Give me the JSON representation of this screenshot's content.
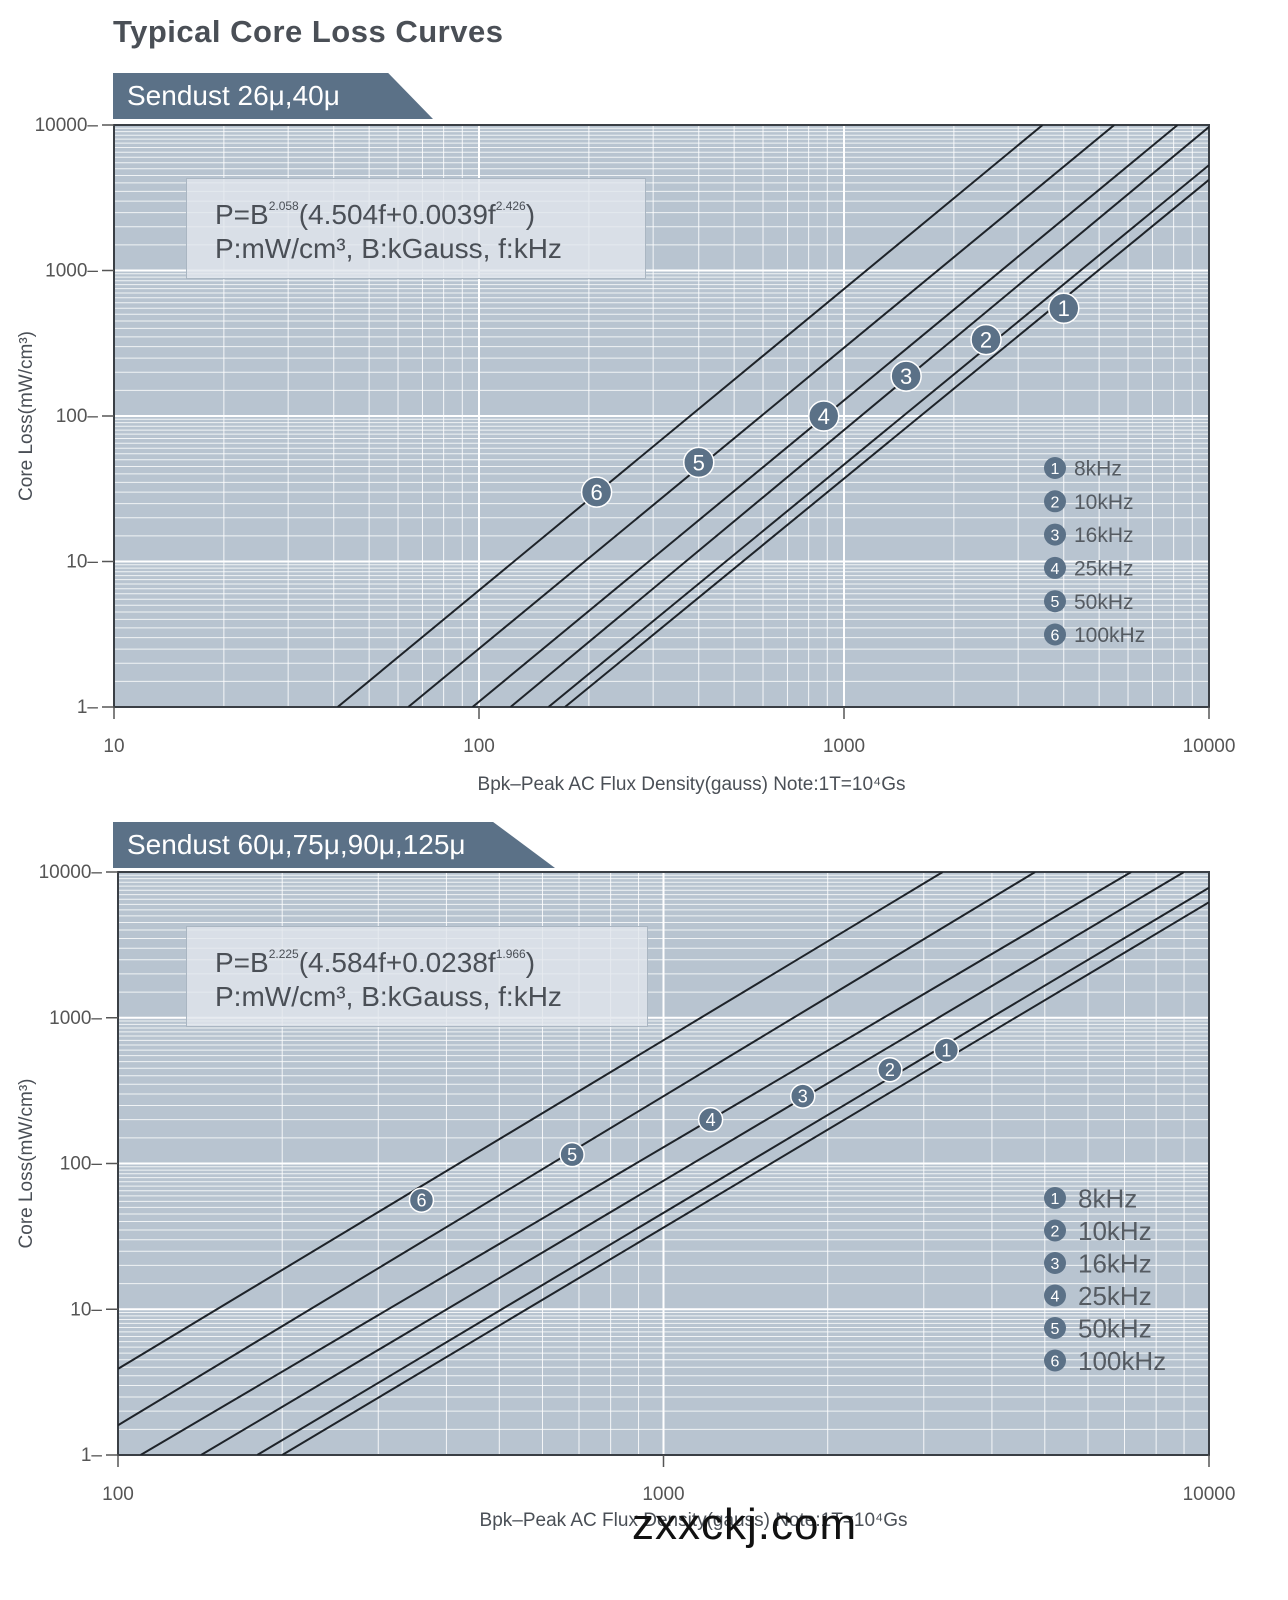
{
  "page": {
    "title": "Typical Core Loss Curves",
    "watermark": "zxxckj.com"
  },
  "colors": {
    "plot_bg": "#b8c4d0",
    "grid": "#ffffff",
    "line": "#1e2329",
    "marker": "#5b7187",
    "banner": "#5b7187"
  },
  "chart_data": [
    {
      "type": "line",
      "title": "Sendust 26μ,40μ",
      "xlabel": "Bpk–Peak AC Flux Density(gauss) Note:1T=10⁴Gs",
      "ylabel": "Core Loss(mW/cm³)",
      "xscale": "log",
      "yscale": "log",
      "xlim": [
        10,
        10000
      ],
      "ylim": [
        1,
        10000
      ],
      "x_ticks": [
        "10",
        "100",
        "1000",
        "10000"
      ],
      "y_ticks": [
        "1",
        "10",
        "100",
        "1000",
        "10000"
      ],
      "formula": {
        "line1_pre": "P=B",
        "exp1": "2.058",
        "line1_mid": "(4.504f+0.0039f",
        "exp2": "2.426",
        "line1_post": ")",
        "line2": "P:mW/cm³,  B:kGauss,  f:kHz"
      },
      "legend_position": "lower-right",
      "series": [
        {
          "id": "1",
          "name": "8kHz",
          "points": [
            [
              172,
              1
            ],
            [
              10000,
              4200
            ]
          ],
          "marker": [
            4000,
            550
          ]
        },
        {
          "id": "2",
          "name": "10kHz",
          "points": [
            [
              155,
              1
            ],
            [
              10000,
              5300
            ]
          ],
          "marker": [
            2450,
            335
          ]
        },
        {
          "id": "3",
          "name": "16kHz",
          "points": [
            [
              122,
              1
            ],
            [
              10000,
              9700
            ]
          ],
          "marker": [
            1480,
            188
          ]
        },
        {
          "id": "4",
          "name": "25kHz",
          "points": [
            [
              96,
              1
            ],
            [
              8200,
              10000
            ]
          ],
          "marker": [
            880,
            100
          ]
        },
        {
          "id": "5",
          "name": "50kHz",
          "points": [
            [
              64,
              1
            ],
            [
              5500,
              10000
            ]
          ],
          "marker": [
            400,
            48
          ]
        },
        {
          "id": "6",
          "name": "100kHz",
          "points": [
            [
              41,
              1
            ],
            [
              3500,
              10000
            ]
          ],
          "marker": [
            210,
            30
          ]
        }
      ]
    },
    {
      "type": "line",
      "title": "Sendust 60μ,75μ,90μ,125μ",
      "xlabel": "Bpk–Peak AC Flux Density(gauss) Note:1T=10⁴Gs",
      "ylabel": "Core Loss(mW/cm³)",
      "xscale": "log",
      "yscale": "log",
      "xlim": [
        100,
        10000
      ],
      "ylim": [
        1,
        10000
      ],
      "x_ticks": [
        "100",
        "1000",
        "10000"
      ],
      "y_ticks": [
        "1",
        "10",
        "100",
        "1000",
        "10000"
      ],
      "formula": {
        "line1_pre": "P=B",
        "exp1": "2.225",
        "line1_mid": "(4.584f+0.0238f",
        "exp2": "1.966",
        "line1_post": ")",
        "line2": "P:mW/cm³,  B:kGauss,  f:kHz"
      },
      "legend_position": "lower-right",
      "series": [
        {
          "id": "1",
          "name": "8kHz",
          "points": [
            [
              200,
              1
            ],
            [
              10000,
              6200
            ]
          ],
          "marker": [
            3300,
            600
          ]
        },
        {
          "id": "2",
          "name": "10kHz",
          "points": [
            [
              180,
              1
            ],
            [
              10000,
              7800
            ]
          ],
          "marker": [
            2600,
            440
          ]
        },
        {
          "id": "3",
          "name": "16kHz",
          "points": [
            [
              142,
              1
            ],
            [
              9000,
              10000
            ]
          ],
          "marker": [
            1800,
            290
          ]
        },
        {
          "id": "4",
          "name": "25kHz",
          "points": [
            [
              110,
              1
            ],
            [
              7200,
              10000
            ]
          ],
          "marker": [
            1220,
            200
          ]
        },
        {
          "id": "5",
          "name": "50kHz",
          "points": [
            [
              100,
              1.6
            ],
            [
              4800,
              10000
            ]
          ],
          "marker": [
            680,
            115
          ]
        },
        {
          "id": "6",
          "name": "100kHz",
          "points": [
            [
              100,
              3.9
            ],
            [
              3250,
              10000
            ]
          ],
          "marker": [
            360,
            56
          ]
        }
      ]
    }
  ]
}
